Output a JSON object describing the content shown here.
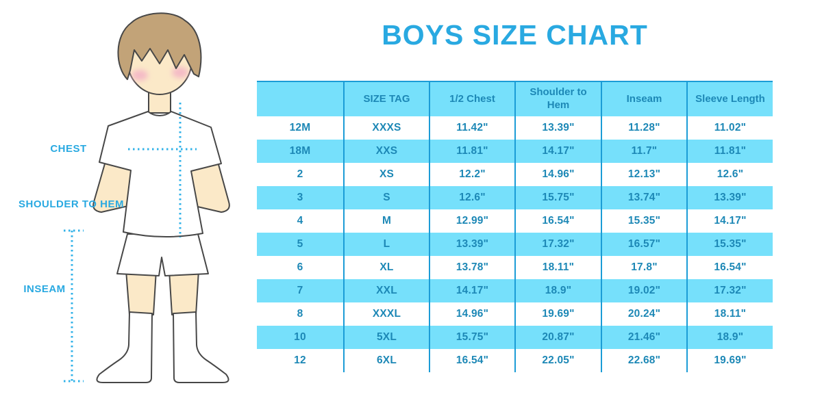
{
  "title": "BOYS SIZE CHART",
  "diagram": {
    "chest_label": "CHEST",
    "shoulder_to_hem_label": "SHOULDER TO HEM",
    "inseam_label": "INSEAM"
  },
  "chart_data": {
    "type": "table",
    "title": "BOYS SIZE CHART",
    "columns": [
      "",
      "SIZE TAG",
      "1/2 Chest",
      "Shoulder to Hem",
      "Inseam",
      "Sleeve Length"
    ],
    "rows": [
      [
        "12M",
        "XXXS",
        "11.42\"",
        "13.39\"",
        "11.28\"",
        "11.02\""
      ],
      [
        "18M",
        "XXS",
        "11.81\"",
        "14.17\"",
        "11.7\"",
        "11.81\""
      ],
      [
        "2",
        "XS",
        "12.2\"",
        "14.96\"",
        "12.13\"",
        "12.6\""
      ],
      [
        "3",
        "S",
        "12.6\"",
        "15.75\"",
        "13.74\"",
        "13.39\""
      ],
      [
        "4",
        "M",
        "12.99\"",
        "16.54\"",
        "15.35\"",
        "14.17\""
      ],
      [
        "5",
        "L",
        "13.39\"",
        "17.32\"",
        "16.57\"",
        "15.35\""
      ],
      [
        "6",
        "XL",
        "13.78\"",
        "18.11\"",
        "17.8\"",
        "16.54\""
      ],
      [
        "7",
        "XXL",
        "14.17\"",
        "18.9\"",
        "19.02\"",
        "17.32\""
      ],
      [
        "8",
        "XXXL",
        "14.96\"",
        "19.69\"",
        "20.24\"",
        "18.11\""
      ],
      [
        "10",
        "5XL",
        "15.75\"",
        "20.87\"",
        "21.46\"",
        "18.9\""
      ],
      [
        "12",
        "6XL",
        "16.54\"",
        "22.05\"",
        "22.68\"",
        "19.69\""
      ]
    ],
    "layout": {
      "striped_rows": true,
      "stripe_pattern": "header and even data rows light blue, others white",
      "column_dividers": true,
      "outer_border": false
    }
  },
  "colors": {
    "header_band": "#76e0fb",
    "divider": "#1b9cd6",
    "table_text": "#1d88b6",
    "title": "#29a9e1",
    "measure_line": "#30b2e8",
    "skin": "#fbe9c8",
    "hair": "#c2a378",
    "blush": "#f4bac6"
  }
}
